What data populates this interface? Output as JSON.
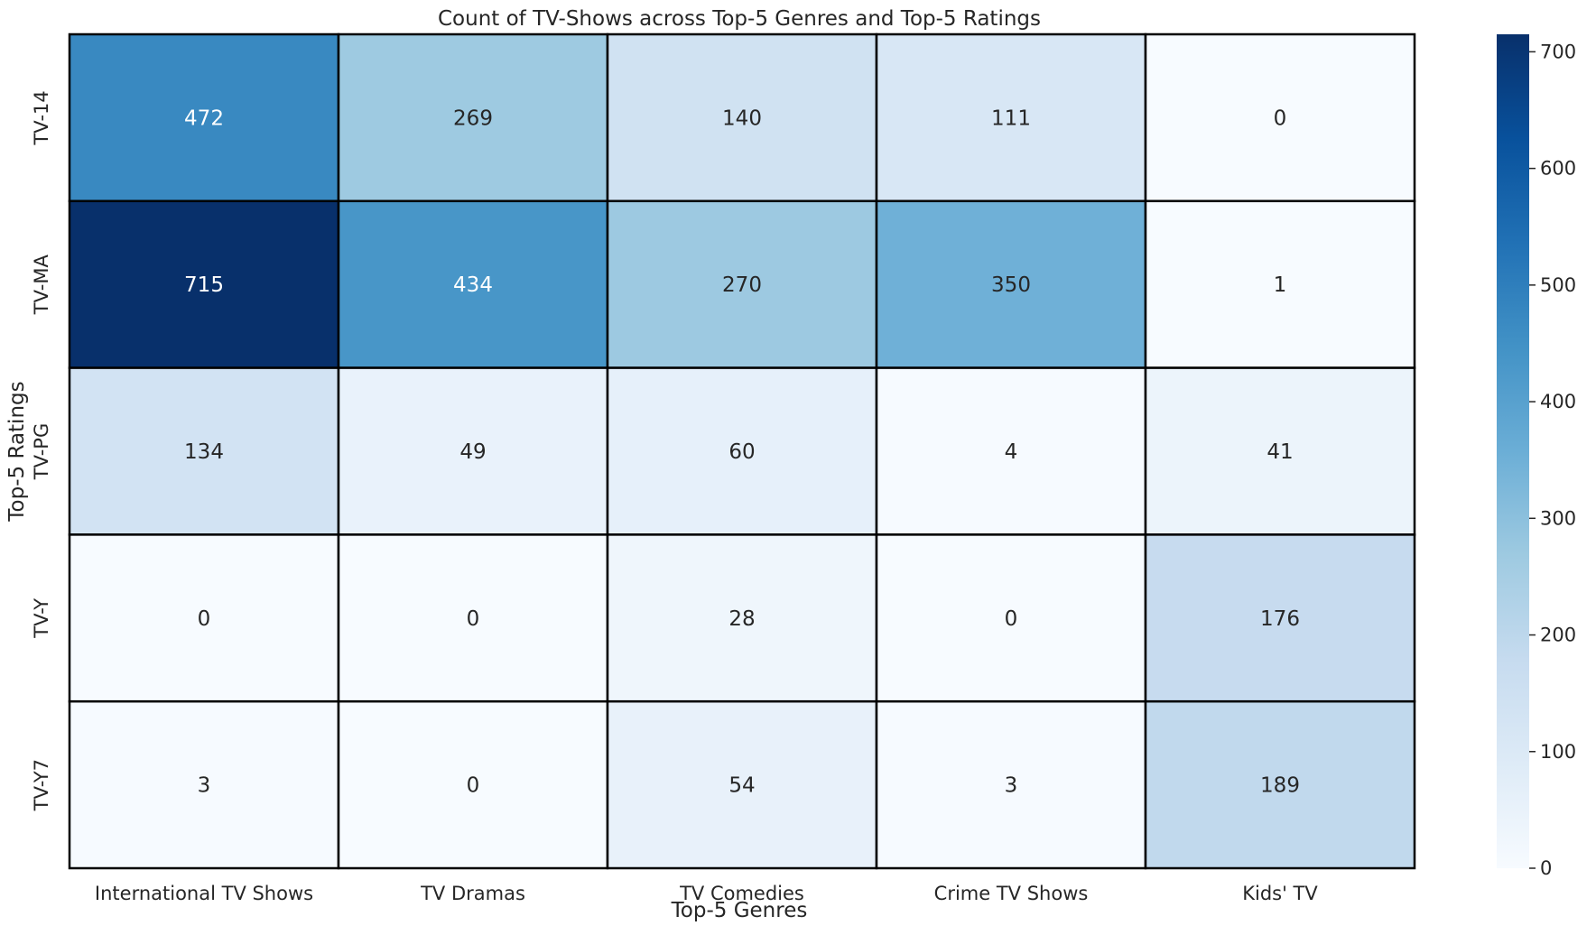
{
  "chart_data": {
    "type": "heatmap",
    "title": "Count of TV-Shows across Top-5 Genres and Top-5 Ratings",
    "xlabel": "Top-5 Genres",
    "ylabel": "Top-5 Ratings",
    "x_categories": [
      "International TV Shows",
      "TV Dramas",
      "TV Comedies",
      "Crime TV Shows",
      "Kids' TV"
    ],
    "y_categories": [
      "TV-14",
      "TV-MA",
      "TV-PG",
      "TV-Y",
      "TV-Y7"
    ],
    "values": [
      [
        472,
        269,
        140,
        111,
        0
      ],
      [
        715,
        434,
        270,
        350,
        1
      ],
      [
        134,
        49,
        60,
        4,
        41
      ],
      [
        0,
        0,
        28,
        0,
        176
      ],
      [
        3,
        0,
        54,
        3,
        189
      ]
    ],
    "colormap": "Blues",
    "colorbar": {
      "range": [
        0,
        715
      ],
      "ticks": [
        0,
        100,
        200,
        300,
        400,
        500,
        600,
        700
      ]
    },
    "annotations": true,
    "cell_border_color": "#000000"
  }
}
